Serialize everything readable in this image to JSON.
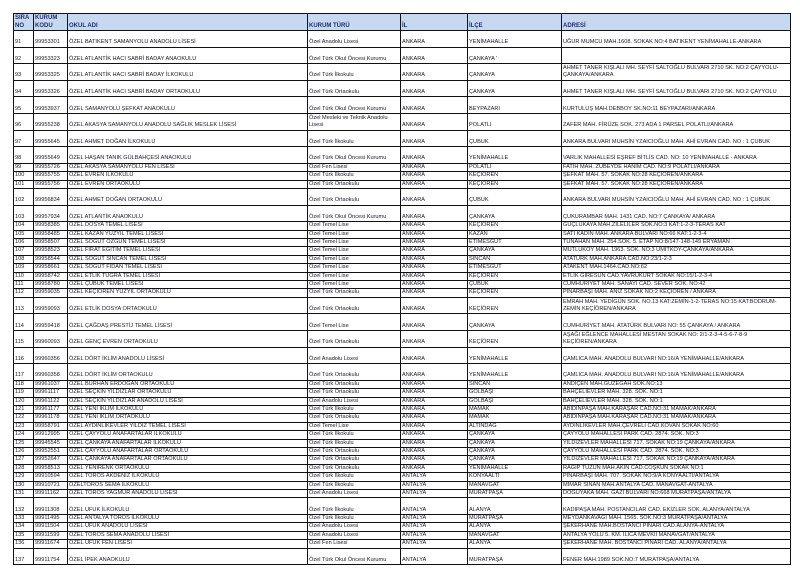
{
  "headers": [
    "SIRA NO",
    "KURUM KODU",
    "OKUL ADI",
    "KURUM TÜRÜ",
    "İL",
    "İLÇE",
    "ADRESİ"
  ],
  "rows": [
    [
      "91",
      "99953301",
      "ÖZEL BATIKENT SAMANYOLU ANADOLU LİSESİ",
      "Özel Anadolu Lisesi",
      "ANKARA",
      "YENİMAHALLE",
      "UĞUR MUMCU MAH.1608. SOKAK NO:4 BATIKENT YENİMAHALLE-ANKARA"
    ],
    [
      "92",
      "99953323",
      "ÖZEL ATLANTİK HACI SABRİ BADAY ANAOKULU",
      "Özel Türk Okul Öncesi Kurumu",
      "ANKARA",
      "ÇANKAYA  '",
      ""
    ],
    [
      "93",
      "99953325",
      "ÖZEL ATLANTİK HACI SABRİ BADAY İLKOKULU",
      "Özel Türk İlkokulu",
      "ANKARA",
      "ÇANKAYA",
      "AHMET TANER KIŞLALI MH. SEYFİ SALTOĞLU BULVARI 2710 SK. NO:2 ÇAYYOLU-ÇANKAYA/ANKARA"
    ],
    [
      "94",
      "99953326",
      "ÖZEL ATLANTİK HACI SABRİ BADAY ORTAOKULU",
      "Özel Türk Ortaokulu",
      "ANKARA",
      "ÇANKAYA",
      "AHMET TANER KIŞLALI MH. SEYFİ SALTOĞLU BULVARI 2710 SK. NO:2 ÇAYYOLU"
    ],
    [
      "95",
      "99953937",
      "ÖZEL SAMANYOLU ŞEFKAT ANAOKULU",
      "Özel Türk Okul Öncesi Kurumu",
      "ANKARA",
      "BEYPAZARI",
      "KURTULUŞ MAH.DEBBOY SK.NO:11 BEYPAZARI/ANKARA"
    ],
    [
      "96",
      "99955238",
      "ÖZEL AKASYA SAMANYOLU ANADOLU SAĞLIK MESLEK LİSESİ",
      "Özel Mesleki ve Teknik Anadolu Lisesi",
      "ANKARA",
      "POLATLI",
      "ZAFER MAH. FİRÜZE SOK. 273 ADA 1 PARSEL POLATLI/ANKARA"
    ],
    [
      "97",
      "99955645",
      "ÖZEL AHMET DOĞAN İLKOKULU",
      "Özel Türk İlkokulu",
      "ANKARA",
      "ÇUBUK",
      "ANKARA BULVARI MUHSİN YZAICIOĞLU MAH. AHİ EVRAN CAD. NO : 1 ÇUBUK"
    ],
    [
      "98",
      "99955649",
      "ÖZEL HAŞAN TANIK GÜLBAHÇESİ ANAOKULU",
      "Özel Türk Okul Öncesi Kurumu",
      "ANKARA",
      "YENİMAHALLE",
      "VARLIK MAHALLESİ EŞREF BİTLİS CAD. NO: 10 YENİMAHALLE - ANKARA"
    ],
    [
      "99",
      "99955726",
      "ÖZEL AKASYA SAMANYOLU FEN LİSESİ",
      "Özel Fen Lisesi",
      "ANKARA",
      "POLATLI",
      "FATİH MAH. ZÜBEYDE HANIM CAD. NO:9 POLATLI/ANKARA"
    ],
    [
      "100",
      "99955755",
      "ÖZEL EVREN İLKOKULU",
      "Özel Türk İlkokulu",
      "ANKARA",
      "KEÇİÖREN",
      "ŞEFKAT MAH. 57. SOKAK NO:28 KEÇİÖREN/ANKARA"
    ],
    [
      "101",
      "99955756",
      "ÖZEL EVREN ORTAOKULU",
      "Özel Türk Ortaokulu",
      "ANKARA",
      "KEÇİÖREN",
      "ŞEFKAT MAH. 57. SOKAK NO:28 KEÇİÖREN/ANKARA"
    ],
    [
      "102",
      "99956834",
      "ÖZEL AHMET DOĞAN ORTAOKULU",
      "Özel Türk Ortaokulu",
      "ANKARA",
      "ÇUBUK",
      "ANKARA BULVARI MUHSİN YZAICIOĞLU MAH. AHİ EVRAN CAD. NO : 1 ÇUBUK"
    ],
    [
      "103",
      "99957934",
      "ÖZEL ATLANTİK ANAOKULU",
      "Özel Türk Okul Öncesi Kurumu",
      "ANKARA",
      "ÇANKAYA",
      "ÇUKURAMBAR MAH. 1431 CAD. NO:7 ÇANKAYA/ ANKARA"
    ],
    [
      "104",
      "99958385",
      "ÖZEL DOSYA TEMEL LİSESİ",
      "Özel Temel Lise",
      "ANKARA",
      "KEÇİÖREN",
      "GÜÇLÜKAYA MAH.ZİLELİLER SOK.NO:3 KAT:1-2-3-TERAS KAT"
    ],
    [
      "105",
      "99958485",
      "ÖZEL KAZAN YÜZYIL TEMEL LİSESİ",
      "Özel Temel Lise",
      "ANKARA",
      "KAZAN",
      "SATI KADIN MAH. ANKARA BULVARI NO:66 KAT:1-2-3-4"
    ],
    [
      "106",
      "99958507",
      "ÖZEL SÖĞÜT ÖZGÜN TEMEL LİSESİ",
      "Özel Temel Lise",
      "ANKARA",
      "ETİMESGUT",
      "TUNAHAN MAH. 254.SOK. 5. ETAP NO:8/147-148-149 ERYAMAN"
    ],
    [
      "107",
      "99958523",
      "ÖZEL FIRAT EĞİTİM TEMEL LİSESİ",
      "Özel Temel Lise",
      "ANKARA",
      "ÇANKAYA",
      "MUTLUKÖY MAH. 1963. SOK. NO:3 ÜMİTKÖY-ÇANKAYA/ANKARA"
    ],
    [
      "108",
      "99958544",
      "ÖZEL SÖĞÜT SİNCAN TEMEL LİSESİ",
      "Özel Temel Lise",
      "ANKARA",
      "SİNCAN",
      "ATATÜRK MAH.ANKARA CAD.NO:23/1-2-3"
    ],
    [
      "109",
      "99958661",
      "ÖZEL SÖĞÜT FİDAN TEMEL LİSESİ",
      "Özel Temel Lise",
      "ANKARA",
      "ETİMESGUT",
      "ATAKENT MAH.1464.CAD.NO:62"
    ],
    [
      "110",
      "99958742",
      "ÖZEL ETLİK TUĞRA TEMEL LİSESİ",
      "Özel Temel Lise",
      "ANKARA",
      "KEÇİÖREN",
      "ETLİK GİRESUN CAD.YAVRUKURT SOKAK NO:15/1-2-3-4"
    ],
    [
      "111",
      "99958780",
      "ÖZEL ÇUBUK TEMEL LİSESİ",
      "Özel Temel Lise",
      "ANKARA",
      "ÇUBUK",
      "CUMHURİYET MAH. SANAYİ CAD. SEVER SOK. NO:42"
    ],
    [
      "112",
      "99959035",
      "ÖZEL KEÇİÖREN YÜZYIL ORTAOKULU",
      "Özel Türk Ortaokulu",
      "ANKARA",
      "KEÇİÖREN",
      "PINARBAŞI MAH. ANIZ SOKAK NO:2 KEÇİÖREN / ANKARA"
    ],
    [
      "113",
      "99959093",
      "ÖZEL ETLİK DOSYA ORTAOKULU",
      "Özel Türk Ortaokulu",
      "ANKARA",
      "KEÇİÖREN",
      "EMRAH MAH. YEDİGÜN SOK. NO.13 KAT:ZEMİN-1-2-TERAS NO:15 KAT:BODRUM-ZEMİN KEÇİÖREN/ANKARA"
    ],
    [
      "114",
      "99959418",
      "ÖZEL ÇAĞDAŞ PRESTİJ TEMEL LİSESİ",
      "Özel Temel Lise",
      "ANKARA",
      "ÇANKAYA",
      "CUMHURİYET MAH. ATATÜRK BULVARI NO: 55 ÇANKAYA / ANKARA"
    ],
    [
      "115",
      "99960093",
      "ÖZEL GENÇ EVREN ORTAOKULU",
      "Özel Türk Ortaokulu",
      "ANKARA",
      "KEÇİÖREN",
      "AŞAĞI EĞLENCE MAHALLESİ MESTAN SOKAK NO: 2/1-2-3-4-5-6-7-8-9 KEÇİÖREN/ANKARA"
    ],
    [
      "116",
      "99960356",
      "ÖZEL DÖRT İKLİM ANADOLU LİSESİ",
      "Özel Anadolu Lisesi",
      "ANKARA",
      "YENİMAHALLE",
      "ÇAMLICA MAH. ANADOLU BULVARI NO:16/A YENİMAHALLE/ANKARA"
    ],
    [
      "117",
      "99960358",
      "ÖZEL DÖRT İKLİM ORTAOKULU",
      "Özel Türk Ortaokulu",
      "ANKARA",
      "YENİMAHALLE",
      "ÇAMLICA MAH. ANADOLU BULVARI NO:16/A YENİMAHALLE/ANKARA"
    ],
    [
      "118",
      "99961037",
      "ÖZEL BURHAN ERDOĞAN ORTAOKULU",
      "Özel Türk Ortaokulu",
      "ANKARA",
      "SİNCAN",
      "ANDİÇEN MAH.GÜZEGAH SOK.NO:13"
    ],
    [
      "119",
      "99961117",
      "ÖZEL SEÇKİN YILDIZLAR ORTAOKULU",
      "Özel Türk Ortaokulu",
      "ANKARA",
      "GÖLBAŞI",
      "BAHÇELİEVLER MAH. 328. SOK. NO:1"
    ],
    [
      "120",
      "99961122",
      "ÖZEL SEÇKİN YILDIZLAR ANADOLU LİSESİ",
      "Özel Anadolu Lisesi",
      "ANKARA",
      "GÖLBAŞI",
      "BAHÇELİEVLER MAH. 328. SOK. NO:1"
    ],
    [
      "121",
      "99961177",
      "ÖZEL YENİ İKLİM İLKOKULU",
      "Özel Türk İlkokulu",
      "ANKARA",
      "MAMAK",
      "ABİDİNPAŞA MAH.KARAŞAR CAD.NO:31 MAMAK/ANKARA"
    ],
    [
      "122",
      "99961178",
      "ÖZEL YENİ İKLİM ORTAOKULU",
      "Özel Türk Ortaokulu",
      "ANKARA",
      "MAMAK",
      "ABİDİNPAŞA MAH.KARAŞAR CAD.NO:31 MAMAK/ANKARA"
    ],
    [
      "123",
      "99958791",
      "ÖZEL AYDINLIKEVLER YILDIZ TEMEL LİSESİ",
      "Özel Temel Lise",
      "ANKARA",
      "ALTINDAĞ",
      "AYDINLIKEVLER MAH.ÇEVRELİ CAD.KOVAN SOKAK NO:60"
    ],
    [
      "124",
      "99912995",
      "ÖZEL ÇAYYOLU ANAFARTALAR İLKOKULU",
      "Özel Türk İlkokulu",
      "ANKARA",
      "ÇANKAYA",
      "ÇAYYOLU MAHALLESİ PARK CAD. 2874. SOK. NO:3"
    ],
    [
      "125",
      "99945545",
      "ÖZEL ÇANKAYA ANAFARTALAR İLKOKULU",
      "Özel Türk İlkokulu",
      "ANKARA",
      "ÇANKAYA",
      "YILDIZEVLER MAHALLESİ 717. SOKAK NO:19 ÇANKAYA/ANKARA"
    ],
    [
      "126",
      "99952551",
      "ÖZEL ÇAYYOLU ANAFARTALAR ORTAOKULU",
      "Özel Türk Ortaokulu",
      "ANKARA",
      "ÇANKAYA",
      "ÇAYYOLU MAHALLESİ PARK CAD. 2874. SOK. NO:3"
    ],
    [
      "127",
      "99952647",
      "ÖZEL ÇANKAYA ANAFARTALAR ORTAOKULU",
      "Özel Türk Ortaokulu",
      "ANKARA",
      "ÇANKAYA",
      "YILDIZEVLER MAHALLESİ 717. SOKAK NO:19 ÇANKAYA/ANKARA"
    ],
    [
      "128",
      "99958513",
      "ÖZEL YENİRENK ORTAOKULU",
      "Özel Türk Ortaokulu",
      "ANKARA",
      "YENİMAHALLE",
      "RAGIP TÜZÜN MAH.AKIN CAD.COŞKUN SOKAK NO:1"
    ],
    [
      "129",
      "99910594",
      "ÖZEL TOROS AKDENİZ İLKOKULU",
      "Özel Türk İlkokulu",
      "ANTALYA",
      "KONYAALTI",
      "PINARBAŞI MAH. 707. SOKAK NO:9/A KONYAALTI/ANTALYA"
    ],
    [
      "130",
      "99910721",
      "ÖZELTOROS SEMA İLKOKULU",
      "Özel Türk İlkokulu",
      "ANTALYA",
      "MANAVGAT",
      "MİMAR SİNAN MAH.ANTALYA CAD. MANAVGAT-ANTALYA"
    ],
    [
      "131",
      "99911162",
      "ÖZEL TOROS YAĞMUR ANADOLU LİSESİ",
      "Özel Anadolu Lisesi",
      "ANTALYA",
      "MURATPAŞA",
      "DOĞUYAKA MAH. GAZİ BULVARI NO:668 MURATPAŞA/ANTALYA"
    ],
    [
      "132",
      "99911308",
      "ÖZEL UFUK İLKOKULU",
      "Özel Türk İlkokulu",
      "ANTALYA",
      "ALANYA",
      "KADIPAŞA MAH. POSTANCILAR CAD. EKİZLER SOK. ALANYA/ANTALYA"
    ],
    [
      "133",
      "99911495",
      "ÖZEL ANTALYA TOROS İLKOKULU",
      "Özel Türk İlkokulu",
      "ANTALYA",
      "MURATPAŞA",
      "MEYDANKAVAĞI MAH. 1565. SOK.NO:3 MURATPAŞA/ANTALYA"
    ],
    [
      "134",
      "99911504",
      "ÖZEL UFUK ANADOLU LİSESİ",
      "Özel Anadolu Lisesi",
      "ANTALYA",
      "ALANYA",
      "ŞEKERHANE MAH.BOSTANCI PINARI CAD.ALANYA-ANTALYA"
    ],
    [
      "135",
      "99911599",
      "ÖZEL TOROS SEMA ANADOLU LİSESİ",
      "Özel Anadolu Lisesi",
      "ANTALYA",
      "MANAVGAT",
      "ANTALYA YOLU 5. KM. ILICA MEVKİİ MANAVGAT/ANTALYA"
    ],
    [
      "136",
      "99911674",
      "ÖZEL UFUK FEN LİSESİ",
      "Özel Fen Lisesi",
      "ANTALYA",
      "ALANYA",
      "ŞEKERHANE MAH. BOSTANCI PINARI CAD. ALANYA/ANTALYA"
    ],
    [
      "137",
      "99911754",
      "ÖZEL İPEK ANAOKULU",
      "Özel Türk Okul Öncesi Kurumu",
      "ANTALYA",
      "MURATPAŞA",
      "FENER MAH.1989 SOK.NO:7 MURATPAŞA/ANTALYA"
    ]
  ],
  "colors": {
    "header_bg": "#c6d9f0",
    "header_text": "#1f2f6a",
    "border": "#111111"
  }
}
